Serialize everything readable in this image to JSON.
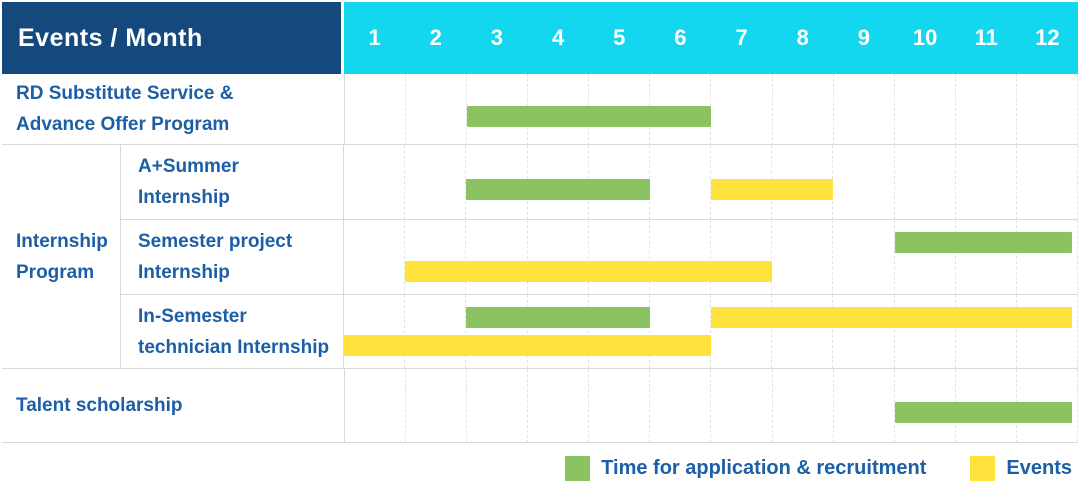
{
  "colors": {
    "navy_header": "#15497D",
    "cyan_months": "#12D7EF",
    "recruitment_green": "#8BC363",
    "event_yellow": "#FFE33C",
    "label_blue": "#1C5FA6"
  },
  "table": {
    "header_label": "Events / Month",
    "months": [
      "1",
      "2",
      "3",
      "4",
      "5",
      "6",
      "7",
      "8",
      "9",
      "10",
      "11",
      "12"
    ],
    "group": {
      "label_lines": [
        "Internship",
        "Program"
      ]
    },
    "rows": [
      {
        "id": "rd-substitute",
        "label_lines": [
          "RD Substitute Service &",
          "Advance Offer Program"
        ],
        "in_group": false,
        "height_class": "h-rd",
        "bars": [
          {
            "type": "recruitment",
            "start_month": 3,
            "end_month": 6,
            "level": "single"
          }
        ]
      },
      {
        "id": "a-plus-summer",
        "label_lines": [
          "A+Summer",
          "Internship"
        ],
        "in_group": true,
        "height_class": "h-sub1",
        "bars": [
          {
            "type": "recruitment",
            "start_month": 3,
            "end_month": 5,
            "level": "single"
          },
          {
            "type": "event",
            "start_month": 7,
            "end_month": 8,
            "level": "single"
          }
        ]
      },
      {
        "id": "semester-project",
        "label_lines": [
          "Semester project",
          "Internship"
        ],
        "in_group": true,
        "height_class": "h-sub2",
        "bars": [
          {
            "type": "recruitment",
            "start_month": 10,
            "end_month": 12,
            "level": "top"
          },
          {
            "type": "event",
            "start_month": 2,
            "end_month": 7,
            "level": "bottom"
          }
        ]
      },
      {
        "id": "in-semester-technician",
        "label_lines": [
          "In-Semester",
          "technician Internship"
        ],
        "in_group": true,
        "height_class": "h-sub3",
        "bars": [
          {
            "type": "recruitment",
            "start_month": 3,
            "end_month": 5,
            "level": "top"
          },
          {
            "type": "event",
            "start_month": 7,
            "end_month": 12,
            "level": "top"
          },
          {
            "type": "event",
            "start_month": 1,
            "end_month": 6,
            "level": "bottom"
          }
        ]
      },
      {
        "id": "talent-scholarship",
        "label_lines": [
          "Talent scholarship"
        ],
        "in_group": false,
        "height_class": "h-talent",
        "bars": [
          {
            "type": "recruitment",
            "start_month": 10,
            "end_month": 12,
            "level": "single"
          }
        ]
      }
    ]
  },
  "legend": {
    "items": [
      {
        "type": "recruitment",
        "label": "Time for application & recruitment"
      },
      {
        "type": "event",
        "label": "Events"
      }
    ]
  },
  "chart_data": {
    "type": "table",
    "subtype": "gantt-schedule",
    "title": "Events / Month",
    "x_axis": {
      "label": "Month",
      "ticks": [
        1,
        2,
        3,
        4,
        5,
        6,
        7,
        8,
        9,
        10,
        11,
        12
      ]
    },
    "legend_position": "bottom-right",
    "series_types": {
      "recruitment": "Time for application & recruitment",
      "event": "Events"
    },
    "rows": [
      {
        "event": "RD Substitute Service & Advance Offer Program",
        "group": null,
        "spans": [
          {
            "series": "recruitment",
            "months": [
              3,
              6
            ]
          }
        ]
      },
      {
        "event": "A+Summer Internship",
        "group": "Internship Program",
        "spans": [
          {
            "series": "recruitment",
            "months": [
              3,
              5
            ]
          },
          {
            "series": "event",
            "months": [
              7,
              8
            ]
          }
        ]
      },
      {
        "event": "Semester project Internship",
        "group": "Internship Program",
        "spans": [
          {
            "series": "recruitment",
            "months": [
              10,
              12
            ]
          },
          {
            "series": "event",
            "months": [
              2,
              7
            ]
          }
        ]
      },
      {
        "event": "In-Semester technician Internship",
        "group": "Internship Program",
        "spans": [
          {
            "series": "recruitment",
            "months": [
              3,
              5
            ]
          },
          {
            "series": "event",
            "months": [
              7,
              12
            ]
          },
          {
            "series": "event",
            "months": [
              1,
              6
            ]
          }
        ]
      },
      {
        "event": "Talent scholarship",
        "group": null,
        "spans": [
          {
            "series": "recruitment",
            "months": [
              10,
              12
            ]
          }
        ]
      }
    ]
  }
}
